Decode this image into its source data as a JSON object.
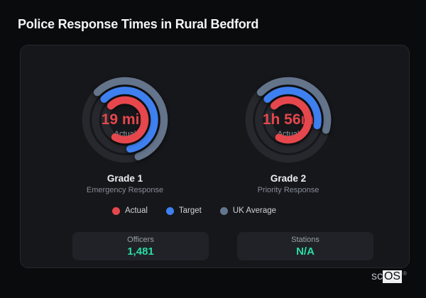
{
  "page": {
    "title": "Police Response Times in Rural Bedford"
  },
  "chart_data": [
    {
      "type": "radial_bar_gauge",
      "title": "Grade 1",
      "subtitle": "Emergency Response",
      "center_value": "19 min",
      "center_label": "Actual",
      "start_angle_deg": 315,
      "direction": "clockwise",
      "track_color": "#26282d",
      "rings": [
        {
          "name": "UK Average",
          "color": "#64748b",
          "radius": 55,
          "sweep_deg": 205,
          "fill_percent": 57
        },
        {
          "name": "Target",
          "color": "#3e80f0",
          "radius": 41.5,
          "sweep_deg": 215,
          "fill_percent": 60
        },
        {
          "name": "Actual",
          "color": "#e5474c",
          "radius": 28,
          "sweep_deg": 255,
          "fill_percent": 71
        }
      ]
    },
    {
      "type": "radial_bar_gauge",
      "title": "Grade 2",
      "subtitle": "Priority Response",
      "center_value": "1h 56m",
      "center_label": "Actual",
      "start_angle_deg": 315,
      "direction": "clockwise",
      "track_color": "#26282d",
      "rings": [
        {
          "name": "UK Average",
          "color": "#64748b",
          "radius": 55,
          "sweep_deg": 150,
          "fill_percent": 42
        },
        {
          "name": "Target",
          "color": "#3e80f0",
          "radius": 41.5,
          "sweep_deg": 146,
          "fill_percent": 41
        },
        {
          "name": "Actual",
          "color": "#e5474c",
          "radius": 28,
          "sweep_deg": 253,
          "fill_percent": 70
        }
      ]
    }
  ],
  "legend": [
    {
      "label": "Actual",
      "color": "#e5474c"
    },
    {
      "label": "Target",
      "color": "#3e80f0"
    },
    {
      "label": "UK Average",
      "color": "#64748b"
    }
  ],
  "stats": [
    {
      "label": "Officers",
      "value": "1,481"
    },
    {
      "label": "Stations",
      "value": "N/A"
    }
  ],
  "branding": {
    "prefix": "sc",
    "suffix": "OS",
    "registered": "®"
  },
  "colors": {
    "background": "#0a0b0d",
    "card": "#16171b",
    "track": "#26282d",
    "actual_red": "#e5474c",
    "target_blue": "#3e80f0",
    "uk_average_slate": "#64748b",
    "stat_value_teal": "#2bdca6"
  }
}
